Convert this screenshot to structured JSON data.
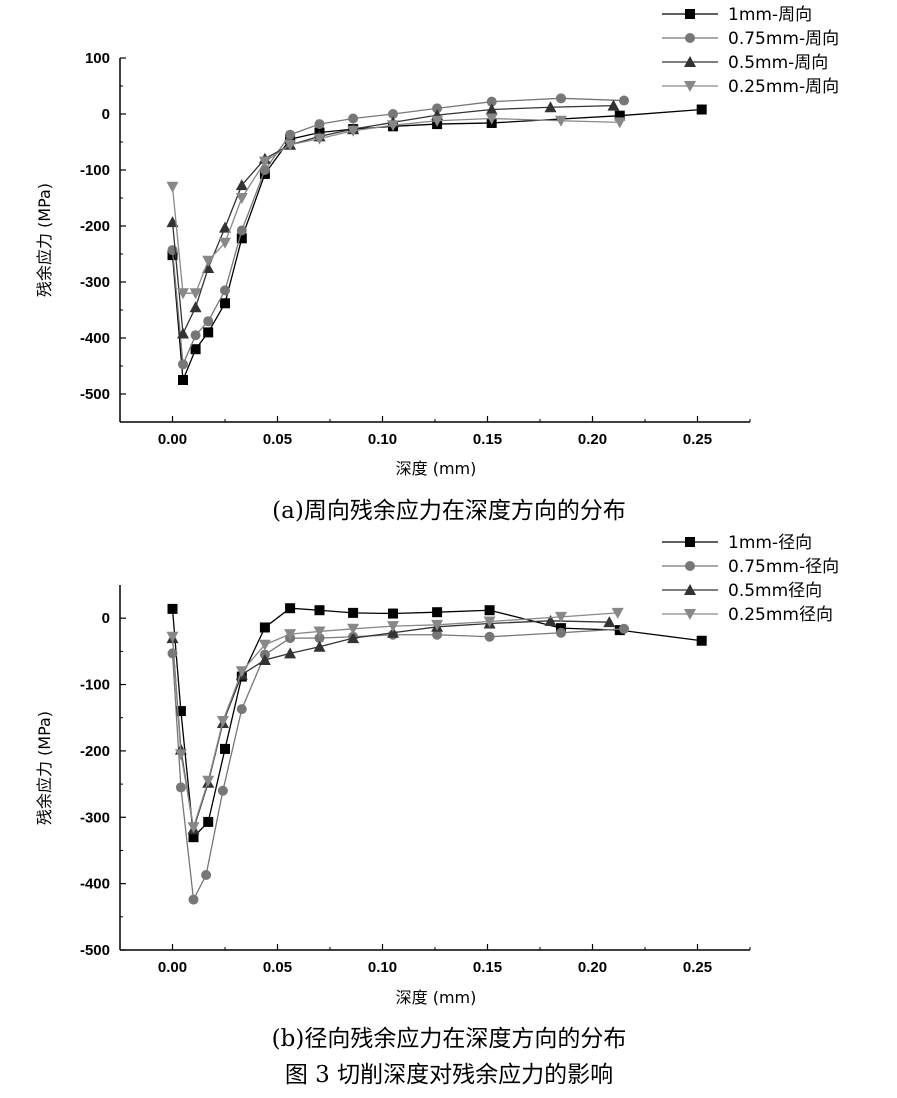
{
  "figure_caption": "图 3 切削深度对残余应力的影响",
  "chart_data": [
    {
      "type": "line",
      "caption": "(a)周向残余应力在深度方向的分布",
      "xlabel": "深度 (mm)",
      "ylabel": "残余应力 (MPa)",
      "xlim": [
        -0.025,
        0.275
      ],
      "ylim": [
        -550,
        100
      ],
      "xticks": [
        0.0,
        0.05,
        0.1,
        0.15,
        0.2,
        0.25
      ],
      "xtick_labels": [
        "0.00",
        "0.05",
        "0.10",
        "0.15",
        "0.20",
        "0.25"
      ],
      "yticks": [
        100,
        0,
        -100,
        -200,
        -300,
        -400,
        -500
      ],
      "ytick_labels": [
        "100",
        "0",
        "-100",
        "-200",
        "-300",
        "-400",
        "-500"
      ],
      "legend_position": "top-right",
      "series": [
        {
          "name": "1mm-周向",
          "marker": "square",
          "color": "#000000",
          "x": [
            0.0,
            0.005,
            0.011,
            0.017,
            0.025,
            0.033,
            0.044,
            0.056,
            0.07,
            0.086,
            0.105,
            0.126,
            0.152,
            0.213,
            0.252
          ],
          "y": [
            -252,
            -475,
            -420,
            -390,
            -338,
            -222,
            -107,
            -45,
            -33,
            -27,
            -22,
            -18,
            -16,
            -3,
            8
          ]
        },
        {
          "name": "0.75mm-周向",
          "marker": "circle",
          "color": "#777777",
          "x": [
            0.0,
            0.005,
            0.011,
            0.017,
            0.025,
            0.033,
            0.044,
            0.056,
            0.07,
            0.086,
            0.105,
            0.126,
            0.152,
            0.185,
            0.215
          ],
          "y": [
            -243,
            -447,
            -395,
            -370,
            -315,
            -208,
            -100,
            -37,
            -18,
            -8,
            0,
            10,
            22,
            28,
            24
          ]
        },
        {
          "name": "0.5mm-周向",
          "marker": "triangle-up",
          "color": "#333333",
          "x": [
            0.0,
            0.005,
            0.011,
            0.017,
            0.025,
            0.033,
            0.044,
            0.056,
            0.07,
            0.086,
            0.105,
            0.126,
            0.152,
            0.18,
            0.21
          ],
          "y": [
            -193,
            -392,
            -345,
            -275,
            -203,
            -127,
            -80,
            -55,
            -40,
            -27,
            -15,
            -2,
            8,
            12,
            15
          ]
        },
        {
          "name": "0.25mm-周向",
          "marker": "triangle-down",
          "color": "#888888",
          "x": [
            0.0,
            0.005,
            0.011,
            0.017,
            0.025,
            0.033,
            0.044,
            0.056,
            0.07,
            0.086,
            0.105,
            0.126,
            0.152,
            0.185,
            0.213
          ],
          "y": [
            -130,
            -320,
            -320,
            -262,
            -230,
            -150,
            -85,
            -55,
            -44,
            -30,
            -20,
            -12,
            -8,
            -12,
            -15
          ]
        }
      ]
    },
    {
      "type": "line",
      "caption": "(b)径向残余应力在深度方向的分布",
      "xlabel": "深度 (mm)",
      "ylabel": "残余应力 (MPa)",
      "xlim": [
        -0.025,
        0.275
      ],
      "ylim": [
        -500,
        50
      ],
      "xticks": [
        0.0,
        0.05,
        0.1,
        0.15,
        0.2,
        0.25
      ],
      "xtick_labels": [
        "0.00",
        "0.05",
        "0.10",
        "0.15",
        "0.20",
        "0.25"
      ],
      "yticks": [
        0,
        -100,
        -200,
        -300,
        -400,
        -500
      ],
      "ytick_labels": [
        "0",
        "-100",
        "-200",
        "-300",
        "-400",
        "-500"
      ],
      "legend_position": "top-right",
      "series": [
        {
          "name": "1mm-径向",
          "marker": "square",
          "color": "#000000",
          "x": [
            0.0,
            0.004,
            0.01,
            0.017,
            0.025,
            0.033,
            0.044,
            0.056,
            0.07,
            0.086,
            0.105,
            0.126,
            0.151,
            0.185,
            0.213,
            0.252
          ],
          "y": [
            14,
            -140,
            -330,
            -307,
            -197,
            -88,
            -14,
            15,
            12,
            8,
            7,
            9,
            12,
            -15,
            -18,
            -34
          ]
        },
        {
          "name": "0.75mm-径向",
          "marker": "circle",
          "color": "#777777",
          "x": [
            0.0,
            0.004,
            0.01,
            0.016,
            0.024,
            0.033,
            0.044,
            0.056,
            0.07,
            0.086,
            0.105,
            0.126,
            0.151,
            0.185,
            0.215
          ],
          "y": [
            -53,
            -255,
            -424,
            -387,
            -260,
            -137,
            -55,
            -30,
            -30,
            -28,
            -25,
            -25,
            -28,
            -22,
            -16
          ]
        },
        {
          "name": "0.5mm径向",
          "marker": "triangle-up",
          "color": "#333333",
          "x": [
            0.0,
            0.004,
            0.01,
            0.017,
            0.024,
            0.033,
            0.044,
            0.056,
            0.07,
            0.086,
            0.105,
            0.126,
            0.151,
            0.18,
            0.208
          ],
          "y": [
            -30,
            -198,
            -318,
            -248,
            -158,
            -85,
            -63,
            -53,
            -43,
            -30,
            -22,
            -13,
            -8,
            -4,
            -6
          ]
        },
        {
          "name": "0.25mm径向",
          "marker": "triangle-down",
          "color": "#888888",
          "x": [
            0.0,
            0.004,
            0.01,
            0.017,
            0.024,
            0.033,
            0.044,
            0.056,
            0.07,
            0.086,
            0.105,
            0.126,
            0.151,
            0.185,
            0.212
          ],
          "y": [
            -28,
            -205,
            -315,
            -245,
            -155,
            -80,
            -40,
            -24,
            -20,
            -16,
            -12,
            -10,
            -5,
            2,
            8
          ]
        }
      ]
    }
  ]
}
